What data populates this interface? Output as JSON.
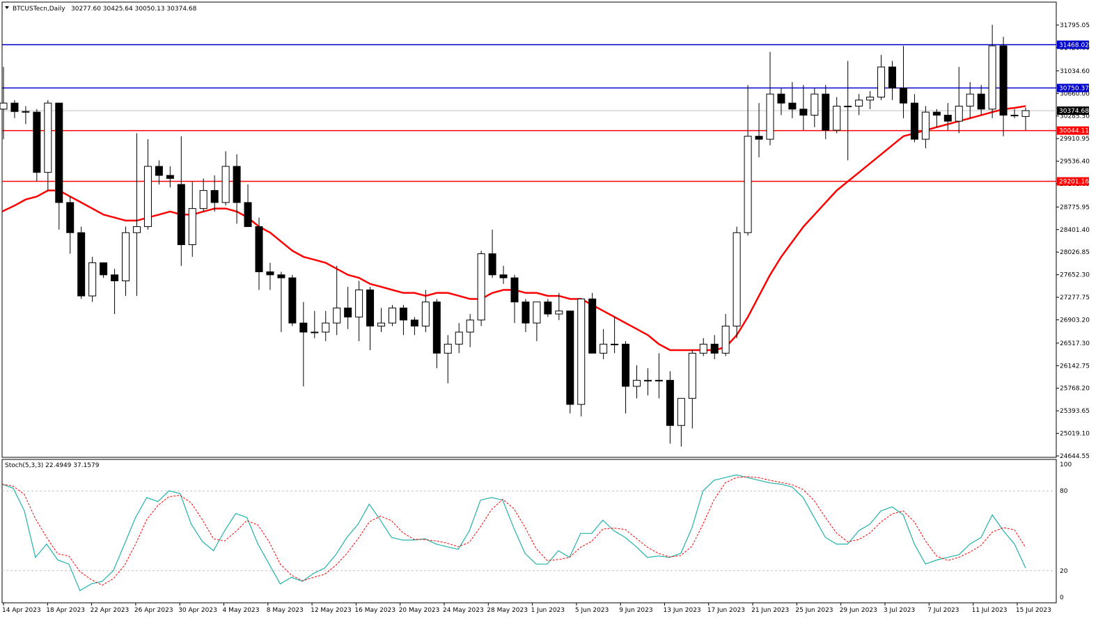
{
  "header": {
    "symbol": "BTCUSTecn,Daily",
    "ohlc": "30277.60 30425.64 30050.13 30374.68"
  },
  "indicator": {
    "label": "Stoch(5,3,3) 22.4949 37.1579"
  },
  "colors": {
    "bull": "#ffffff",
    "bear": "#000000",
    "ma": "#ff0000",
    "stoch_main": "#20b2aa",
    "stoch_signal": "#ff0000",
    "blue_line": "#0000cc",
    "red_line": "#ff0000"
  },
  "chart_data": {
    "type": "candlestick",
    "price_axis": {
      "range": [
        24644.55,
        31795.05
      ],
      "ticks": [
        "31795.05",
        "31420.60",
        "31034.60",
        "30660.00",
        "30285.50",
        "29910.95",
        "29536.40",
        "29161.85",
        "28775.95",
        "28401.40",
        "28026.85",
        "27652.30",
        "27277.75",
        "26903.20",
        "26517.30",
        "26142.75",
        "25768.20",
        "25393.65",
        "25019.10",
        "24644.55"
      ]
    },
    "price_lines": [
      {
        "value": 31468.02,
        "label": "31468.02",
        "color": "blue"
      },
      {
        "value": 30750.37,
        "label": "30750.37",
        "color": "blue"
      },
      {
        "value": 30044.11,
        "label": "30044.11",
        "color": "red"
      },
      {
        "value": 29201.16,
        "label": "29201.16",
        "color": "red"
      }
    ],
    "current_price": {
      "value": 30374.68,
      "label": "30374.68"
    },
    "date_labels": [
      "14 Apr 2023",
      "18 Apr 2023",
      "22 Apr 2023",
      "26 Apr 2023",
      "30 Apr 2023",
      "4 May 2023",
      "8 May 2023",
      "12 May 2023",
      "16 May 2023",
      "20 May 2023",
      "24 May 2023",
      "28 May 2023",
      "1 Jun 2023",
      "5 Jun 2023",
      "9 Jun 2023",
      "13 Jun 2023",
      "17 Jun 2023",
      "21 Jun 2023",
      "25 Jun 2023",
      "29 Jun 2023",
      "3 Jul 2023",
      "7 Jul 2023",
      "11 Jul 2023",
      "15 Jul 2023"
    ],
    "candles": [
      {
        "o": 30400,
        "h": 31100,
        "l": 29900,
        "c": 30500
      },
      {
        "o": 30500,
        "h": 30550,
        "l": 30250,
        "c": 30360
      },
      {
        "o": 30360,
        "h": 30450,
        "l": 30150,
        "c": 30350
      },
      {
        "o": 30350,
        "h": 30400,
        "l": 29200,
        "c": 29350
      },
      {
        "o": 29350,
        "h": 30550,
        "l": 29050,
        "c": 30500
      },
      {
        "o": 30500,
        "h": 30500,
        "l": 28400,
        "c": 28850
      },
      {
        "o": 28850,
        "h": 28950,
        "l": 28000,
        "c": 28350
      },
      {
        "o": 28350,
        "h": 28450,
        "l": 27250,
        "c": 27300
      },
      {
        "o": 27300,
        "h": 27950,
        "l": 27200,
        "c": 27850
      },
      {
        "o": 27850,
        "h": 27850,
        "l": 27600,
        "c": 27650
      },
      {
        "o": 27650,
        "h": 27750,
        "l": 27000,
        "c": 27550
      },
      {
        "o": 27550,
        "h": 28450,
        "l": 27300,
        "c": 28350
      },
      {
        "o": 28350,
        "h": 30000,
        "l": 27300,
        "c": 28450
      },
      {
        "o": 28450,
        "h": 29900,
        "l": 28400,
        "c": 29450
      },
      {
        "o": 29450,
        "h": 29550,
        "l": 29150,
        "c": 29300
      },
      {
        "o": 29300,
        "h": 29450,
        "l": 29100,
        "c": 29250
      },
      {
        "o": 29150,
        "h": 29950,
        "l": 27800,
        "c": 28150
      },
      {
        "o": 28150,
        "h": 29200,
        "l": 27950,
        "c": 28750
      },
      {
        "o": 28750,
        "h": 29250,
        "l": 28700,
        "c": 29050
      },
      {
        "o": 29050,
        "h": 29300,
        "l": 28700,
        "c": 28850
      },
      {
        "o": 28850,
        "h": 29700,
        "l": 28800,
        "c": 29450
      },
      {
        "o": 29450,
        "h": 29650,
        "l": 28500,
        "c": 28850
      },
      {
        "o": 28850,
        "h": 29150,
        "l": 28450,
        "c": 28450
      },
      {
        "o": 28450,
        "h": 28600,
        "l": 27400,
        "c": 27700
      },
      {
        "o": 27700,
        "h": 27850,
        "l": 27400,
        "c": 27650
      },
      {
        "o": 27650,
        "h": 27700,
        "l": 26700,
        "c": 27600
      },
      {
        "o": 27600,
        "h": 27650,
        "l": 26800,
        "c": 26850
      },
      {
        "o": 26850,
        "h": 27200,
        "l": 25800,
        "c": 26700
      },
      {
        "o": 26700,
        "h": 27050,
        "l": 26600,
        "c": 26700
      },
      {
        "o": 26700,
        "h": 27050,
        "l": 26550,
        "c": 26850
      },
      {
        "o": 26850,
        "h": 27800,
        "l": 26650,
        "c": 27100
      },
      {
        "o": 27100,
        "h": 27450,
        "l": 26750,
        "c": 26950
      },
      {
        "o": 26950,
        "h": 27550,
        "l": 26550,
        "c": 27400
      },
      {
        "o": 27400,
        "h": 27450,
        "l": 26400,
        "c": 26800
      },
      {
        "o": 26800,
        "h": 27100,
        "l": 26700,
        "c": 26850
      },
      {
        "o": 26850,
        "h": 27150,
        "l": 26800,
        "c": 27100
      },
      {
        "o": 27100,
        "h": 27150,
        "l": 26650,
        "c": 26900
      },
      {
        "o": 26900,
        "h": 26950,
        "l": 26650,
        "c": 26800
      },
      {
        "o": 26800,
        "h": 27400,
        "l": 26700,
        "c": 27200
      },
      {
        "o": 27200,
        "h": 27250,
        "l": 26100,
        "c": 26350
      },
      {
        "o": 26350,
        "h": 26650,
        "l": 25850,
        "c": 26500
      },
      {
        "o": 26500,
        "h": 26850,
        "l": 26350,
        "c": 26700
      },
      {
        "o": 26700,
        "h": 27000,
        "l": 26450,
        "c": 26900
      },
      {
        "o": 26900,
        "h": 28050,
        "l": 26800,
        "c": 28000
      },
      {
        "o": 28000,
        "h": 28400,
        "l": 27600,
        "c": 27650
      },
      {
        "o": 27650,
        "h": 27800,
        "l": 27500,
        "c": 27600
      },
      {
        "o": 27600,
        "h": 27650,
        "l": 26850,
        "c": 27200
      },
      {
        "o": 27200,
        "h": 27250,
        "l": 26700,
        "c": 26850
      },
      {
        "o": 26850,
        "h": 27200,
        "l": 26550,
        "c": 27200
      },
      {
        "o": 27200,
        "h": 27250,
        "l": 26950,
        "c": 27000
      },
      {
        "o": 27000,
        "h": 27350,
        "l": 26900,
        "c": 27050
      },
      {
        "o": 27050,
        "h": 27050,
        "l": 25350,
        "c": 25500
      },
      {
        "o": 25500,
        "h": 27250,
        "l": 25300,
        "c": 27250
      },
      {
        "o": 27250,
        "h": 27350,
        "l": 26350,
        "c": 26350
      },
      {
        "o": 26350,
        "h": 26750,
        "l": 26250,
        "c": 26500
      },
      {
        "o": 26500,
        "h": 26950,
        "l": 26350,
        "c": 26500
      },
      {
        "o": 26500,
        "h": 26550,
        "l": 25350,
        "c": 25800
      },
      {
        "o": 25800,
        "h": 26150,
        "l": 25600,
        "c": 25900
      },
      {
        "o": 25900,
        "h": 26100,
        "l": 25650,
        "c": 25900
      },
      {
        "o": 25900,
        "h": 26350,
        "l": 25600,
        "c": 25900
      },
      {
        "o": 25900,
        "h": 26050,
        "l": 24850,
        "c": 25150
      },
      {
        "o": 25150,
        "h": 25600,
        "l": 24800,
        "c": 25600
      },
      {
        "o": 25600,
        "h": 26400,
        "l": 25100,
        "c": 26350
      },
      {
        "o": 26350,
        "h": 26600,
        "l": 26300,
        "c": 26500
      },
      {
        "o": 26500,
        "h": 26650,
        "l": 26250,
        "c": 26350
      },
      {
        "o": 26350,
        "h": 27000,
        "l": 26300,
        "c": 26800
      },
      {
        "o": 26800,
        "h": 28450,
        "l": 26600,
        "c": 28350
      },
      {
        "o": 28350,
        "h": 30800,
        "l": 28300,
        "c": 29950
      },
      {
        "o": 29950,
        "h": 30500,
        "l": 29600,
        "c": 29900
      },
      {
        "o": 29900,
        "h": 31350,
        "l": 29800,
        "c": 30650
      },
      {
        "o": 30650,
        "h": 30750,
        "l": 30300,
        "c": 30500
      },
      {
        "o": 30500,
        "h": 30850,
        "l": 30250,
        "c": 30400
      },
      {
        "o": 30400,
        "h": 30800,
        "l": 30050,
        "c": 30300
      },
      {
        "o": 30300,
        "h": 30750,
        "l": 30100,
        "c": 30650
      },
      {
        "o": 30650,
        "h": 30800,
        "l": 29900,
        "c": 30050
      },
      {
        "o": 30050,
        "h": 30600,
        "l": 30000,
        "c": 30450
      },
      {
        "o": 30450,
        "h": 31200,
        "l": 29550,
        "c": 30450
      },
      {
        "o": 30450,
        "h": 30650,
        "l": 30300,
        "c": 30550
      },
      {
        "o": 30550,
        "h": 30700,
        "l": 30400,
        "c": 30600
      },
      {
        "o": 30600,
        "h": 31300,
        "l": 30550,
        "c": 31100
      },
      {
        "o": 31100,
        "h": 31200,
        "l": 30550,
        "c": 30750
      },
      {
        "o": 30750,
        "h": 31450,
        "l": 30250,
        "c": 30500
      },
      {
        "o": 30500,
        "h": 30650,
        "l": 29850,
        "c": 29900
      },
      {
        "o": 29900,
        "h": 30450,
        "l": 29750,
        "c": 30350
      },
      {
        "o": 30350,
        "h": 30400,
        "l": 30100,
        "c": 30300
      },
      {
        "o": 30300,
        "h": 30500,
        "l": 30050,
        "c": 30200
      },
      {
        "o": 30200,
        "h": 31100,
        "l": 30000,
        "c": 30450
      },
      {
        "o": 30450,
        "h": 30850,
        "l": 30250,
        "c": 30650
      },
      {
        "o": 30650,
        "h": 30800,
        "l": 30300,
        "c": 30400
      },
      {
        "o": 30400,
        "h": 31800,
        "l": 30250,
        "c": 31450
      },
      {
        "o": 31450,
        "h": 31600,
        "l": 29950,
        "c": 30300
      },
      {
        "o": 30300,
        "h": 30400,
        "l": 30250,
        "c": 30300
      },
      {
        "o": 30277.6,
        "h": 30425.64,
        "l": 30050.13,
        "c": 30374.68
      }
    ],
    "ma_line": [
      28700,
      28800,
      28900,
      28950,
      29050,
      29050,
      28950,
      28850,
      28750,
      28650,
      28600,
      28550,
      28550,
      28600,
      28650,
      28700,
      28650,
      28650,
      28700,
      28750,
      28750,
      28700,
      28600,
      28450,
      28350,
      28200,
      28050,
      27950,
      27900,
      27850,
      27750,
      27650,
      27600,
      27500,
      27450,
      27400,
      27350,
      27350,
      27300,
      27350,
      27350,
      27300,
      27250,
      27250,
      27350,
      27400,
      27400,
      27350,
      27350,
      27300,
      27300,
      27250,
      27250,
      27150,
      27050,
      26950,
      26850,
      26750,
      26650,
      26500,
      26400,
      26400,
      26400,
      26400,
      26400,
      26450,
      26650,
      26950,
      27300,
      27650,
      27950,
      28200,
      28450,
      28650,
      28850,
      29050,
      29200,
      29350,
      29500,
      29650,
      29800,
      29950,
      30000,
      30050,
      30100,
      30150,
      30200,
      30250,
      30300,
      30350,
      30400,
      30420,
      30450
    ],
    "stochastic": {
      "range": [
        0,
        100
      ],
      "levels": [
        20,
        80
      ],
      "ticks": [
        "100",
        "80",
        "20",
        "0"
      ],
      "main": [
        85,
        82,
        65,
        30,
        40,
        28,
        25,
        5,
        10,
        12,
        20,
        40,
        60,
        75,
        72,
        80,
        78,
        55,
        42,
        35,
        50,
        63,
        60,
        40,
        25,
        10,
        15,
        12,
        18,
        22,
        32,
        45,
        55,
        70,
        58,
        45,
        43,
        43,
        44,
        40,
        38,
        36,
        50,
        73,
        75,
        73,
        52,
        33,
        25,
        25,
        35,
        30,
        48,
        48,
        58,
        50,
        45,
        38,
        30,
        31,
        30,
        33,
        52,
        80,
        88,
        90,
        92,
        90,
        88,
        86,
        85,
        83,
        75,
        60,
        45,
        40,
        40,
        50,
        55,
        65,
        68,
        62,
        40,
        25,
        28,
        30,
        32,
        40,
        45,
        62,
        50,
        40,
        22
      ]
    }
  }
}
